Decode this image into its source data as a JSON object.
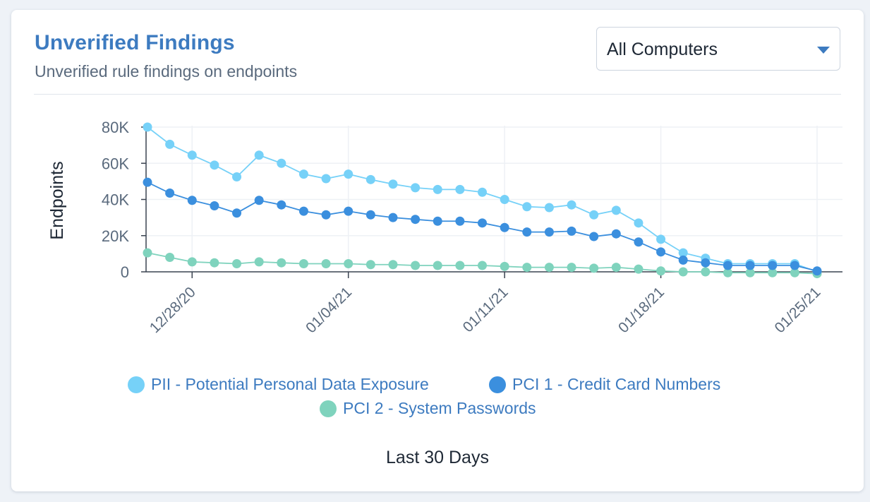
{
  "card": {
    "title": "Unverified Findings",
    "subtitle": "Unverified rule findings on endpoints"
  },
  "filter": {
    "selected": "All Computers",
    "caret_icon": "caret-down-icon"
  },
  "footer": {
    "label": "Last 30 Days"
  },
  "colors": {
    "title": "#3d7bc0",
    "pii": "#76d1f8",
    "pci1": "#3b8fde",
    "pci2": "#7fd3bd"
  },
  "chart_data": {
    "type": "line",
    "ylabel": "Endpoints",
    "xlabel": "",
    "ylim": [
      0,
      80000
    ],
    "yticks": [
      0,
      20000,
      40000,
      60000,
      80000
    ],
    "ytick_labels": [
      "0",
      "20K",
      "40K",
      "60K",
      "80K"
    ],
    "x": [
      "12/26/20",
      "12/27/20",
      "12/28/20",
      "12/29/20",
      "12/30/20",
      "12/31/20",
      "01/01/21",
      "01/02/21",
      "01/03/21",
      "01/04/21",
      "01/05/21",
      "01/06/21",
      "01/07/21",
      "01/08/21",
      "01/09/21",
      "01/10/21",
      "01/11/21",
      "01/12/21",
      "01/13/21",
      "01/14/21",
      "01/15/21",
      "01/16/21",
      "01/17/21",
      "01/18/21",
      "01/19/21",
      "01/20/21",
      "01/21/21",
      "01/22/21",
      "01/23/21",
      "01/24/21",
      "01/25/21"
    ],
    "xticks": [
      "12/28/20",
      "01/04/21",
      "01/11/21",
      "01/18/21",
      "01/25/21"
    ],
    "grid": true,
    "legend": "bottom",
    "series": [
      {
        "name": "PII - Potential Personal Data Exposure",
        "color": "#76d1f8",
        "values": [
          80000,
          70500,
          64500,
          59000,
          52500,
          64500,
          60000,
          54000,
          51500,
          54000,
          51000,
          48500,
          46500,
          45500,
          45500,
          44000,
          40000,
          36000,
          35500,
          37000,
          31500,
          34000,
          27000,
          18000,
          10500,
          7500,
          4500,
          4500,
          4500,
          4500,
          0
        ]
      },
      {
        "name": "PCI 1 - Credit Card Numbers",
        "color": "#3b8fde",
        "values": [
          49500,
          43500,
          39500,
          36500,
          32500,
          39500,
          37000,
          33500,
          31500,
          33500,
          31500,
          30000,
          29000,
          28000,
          28000,
          27000,
          24500,
          22000,
          22000,
          22500,
          19500,
          21000,
          16500,
          11000,
          6500,
          5000,
          3500,
          3500,
          3500,
          3500,
          500
        ]
      },
      {
        "name": "PCI 2 - System Passwords",
        "color": "#7fd3bd",
        "values": [
          10500,
          8000,
          5500,
          5000,
          4500,
          5500,
          5000,
          4500,
          4500,
          4500,
          4000,
          4000,
          3500,
          3500,
          3500,
          3500,
          3000,
          2500,
          2500,
          2500,
          2000,
          2500,
          1500,
          500,
          0,
          0,
          -500,
          -500,
          -500,
          -500,
          -1000
        ]
      }
    ]
  }
}
